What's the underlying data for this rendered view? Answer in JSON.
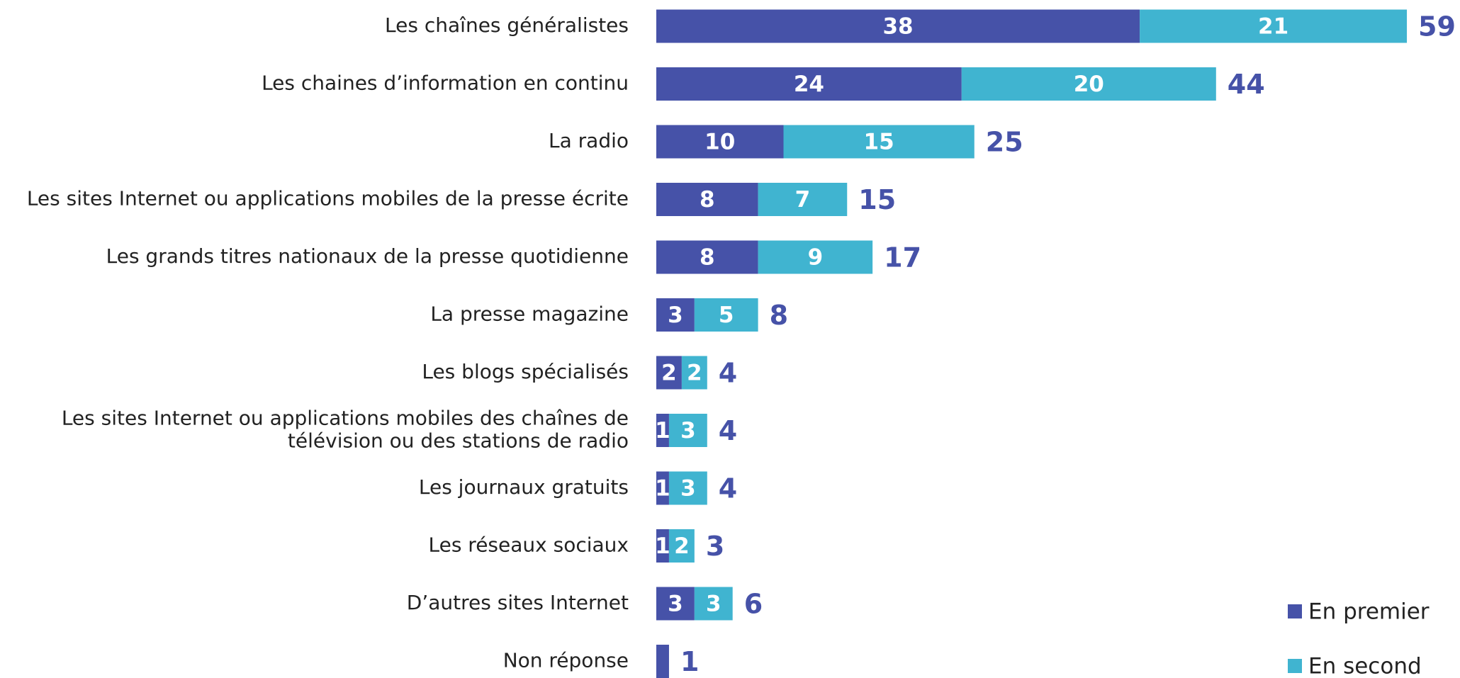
{
  "chart_data": {
    "type": "stacked-bar-horizontal",
    "categories": [
      "Les chaînes généralistes",
      "Les chaines d’information en continu",
      "La radio",
      "Les sites Internet ou applications mobiles de la presse écrite",
      "Les grands titres nationaux de la presse quotidienne",
      "La presse magazine",
      "Les blogs spécialisés",
      "Les sites Internet ou applications mobiles des chaînes de télévision ou des stations de radio",
      "Les journaux gratuits",
      "Les réseaux sociaux",
      "D’autres sites Internet",
      "Non réponse"
    ],
    "series": [
      {
        "name": "En premier",
        "color": "#4652a8",
        "values": [
          38,
          24,
          10,
          8,
          8,
          3,
          2,
          1,
          1,
          1,
          3,
          1
        ],
        "value_labels": [
          "38",
          "24",
          "10",
          "8",
          "8",
          "3",
          "2",
          "1",
          "1",
          "1",
          "3",
          null
        ]
      },
      {
        "name": "En second",
        "color": "#40b4d0",
        "values": [
          21,
          20,
          15,
          7,
          9,
          5,
          2,
          3,
          3,
          2,
          3,
          null
        ]
      }
    ],
    "totals": [
      59,
      44,
      25,
      15,
      17,
      8,
      4,
      4,
      4,
      3,
      6,
      1
    ]
  }
}
